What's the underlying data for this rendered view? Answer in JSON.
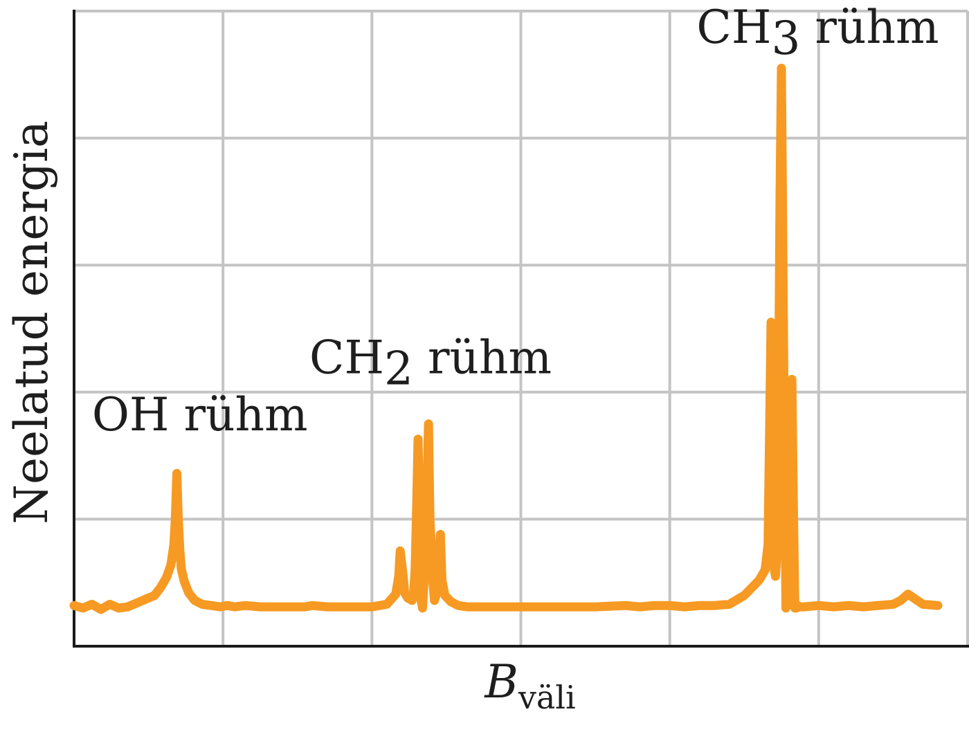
{
  "chart_data": {
    "type": "line",
    "title": "",
    "ylabel": "Neelatud energia",
    "xlabel": "B",
    "xlabel_subscript": "väli",
    "xlim": [
      0,
      6
    ],
    "ylim": [
      0,
      5
    ],
    "grid": true,
    "colors": {
      "series": "#F69A23",
      "grid": "#C4C4C4",
      "axis": "#1A1A1A"
    },
    "series": [
      {
        "x": [
          0.0,
          0.06,
          0.12,
          0.18,
          0.24,
          0.3,
          0.36,
          0.42,
          0.48,
          0.54,
          0.58,
          0.62,
          0.65,
          0.67,
          0.68,
          0.69,
          0.7,
          0.71,
          0.72,
          0.74,
          0.77,
          0.81,
          0.86,
          0.92,
          0.98,
          1.03,
          1.08,
          1.15,
          1.25,
          1.4,
          1.55,
          1.6,
          1.7,
          1.85,
          2.0,
          2.1,
          2.16,
          2.18,
          2.19,
          2.21,
          2.22,
          2.24,
          2.27,
          2.28,
          2.29,
          2.3,
          2.31,
          2.32,
          2.33,
          2.34,
          2.36,
          2.38,
          2.39,
          2.41,
          2.42,
          2.43,
          2.44,
          2.46,
          2.47,
          2.49,
          2.53,
          2.58,
          2.64,
          2.7,
          2.8,
          2.95,
          3.1,
          3.3,
          3.5,
          3.7,
          3.8,
          3.9,
          4.0,
          4.1,
          4.2,
          4.3,
          4.4,
          4.5,
          4.6,
          4.64,
          4.66,
          4.68,
          4.69,
          4.7,
          4.71,
          4.72,
          4.73,
          4.74,
          4.75,
          4.76,
          4.77,
          4.78,
          4.79,
          4.8,
          4.81,
          4.82,
          4.83,
          4.84,
          4.85,
          4.86,
          4.87,
          4.9,
          5.0,
          5.1,
          5.2,
          5.3,
          5.4,
          5.5,
          5.55,
          5.6,
          5.65,
          5.7,
          5.8
        ],
        "y": [
          0.32,
          0.3,
          0.33,
          0.29,
          0.33,
          0.3,
          0.31,
          0.34,
          0.37,
          0.4,
          0.46,
          0.54,
          0.64,
          0.8,
          1.0,
          1.36,
          1.0,
          0.76,
          0.61,
          0.51,
          0.42,
          0.36,
          0.33,
          0.32,
          0.31,
          0.32,
          0.31,
          0.32,
          0.31,
          0.31,
          0.31,
          0.32,
          0.31,
          0.31,
          0.31,
          0.33,
          0.41,
          0.55,
          0.75,
          0.55,
          0.42,
          0.38,
          0.36,
          0.42,
          0.6,
          1.08,
          1.63,
          1.0,
          0.37,
          0.3,
          0.72,
          1.75,
          1.0,
          0.5,
          0.36,
          0.4,
          0.52,
          0.88,
          0.52,
          0.4,
          0.35,
          0.32,
          0.31,
          0.31,
          0.31,
          0.31,
          0.31,
          0.31,
          0.31,
          0.32,
          0.31,
          0.32,
          0.32,
          0.31,
          0.32,
          0.32,
          0.33,
          0.4,
          0.52,
          0.6,
          0.8,
          2.55,
          1.8,
          0.62,
          0.55,
          0.75,
          1.8,
          3.5,
          4.55,
          3.0,
          1.6,
          0.3,
          0.45,
          0.55,
          1.2,
          2.1,
          1.1,
          0.3,
          0.3,
          0.32,
          0.31,
          0.31,
          0.32,
          0.31,
          0.32,
          0.31,
          0.32,
          0.33,
          0.36,
          0.41,
          0.37,
          0.33,
          0.32
        ]
      }
    ],
    "annotations": [
      {
        "main": "OH rühm",
        "sub": "",
        "rest": "",
        "x": 0.12,
        "y": 1.7
      },
      {
        "main": "CH",
        "sub": "2",
        "rest": " rühm",
        "x": 1.58,
        "y": 2.15
      },
      {
        "main": "CH",
        "sub": "3",
        "rest": " rühm",
        "x": 4.18,
        "y": 4.75
      }
    ]
  }
}
